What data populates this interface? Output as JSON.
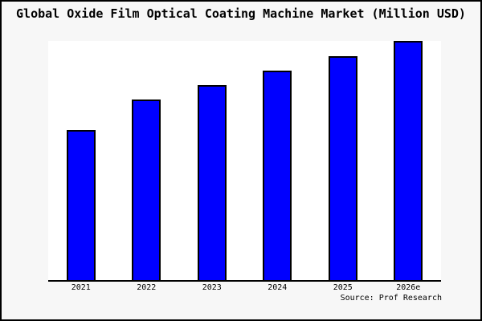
{
  "window": {
    "background_color": "#f7f7f7",
    "border_color": "#000000",
    "plot_background_color": "#ffffff"
  },
  "chart_data": {
    "type": "bar",
    "title": "Global Oxide Film Optical Coating Machine Market (Million USD)",
    "categories": [
      "2021",
      "2022",
      "2023",
      "2024",
      "2025",
      "2026e"
    ],
    "values": [
      62.9,
      75.6,
      81.6,
      87.6,
      93.6,
      100
    ],
    "values_note": "no y-axis ticks or value labels shown in image; values are estimated relative bar heights with tallest bar = 100",
    "xlabel": "",
    "ylabel": "",
    "ylim": [
      0,
      100
    ],
    "grid": false,
    "legend": null,
    "bar_color": "#0000ff",
    "bar_border_color": "#000000",
    "axis_line_color": "#000000"
  },
  "source": {
    "label": "Source: Prof Research"
  }
}
